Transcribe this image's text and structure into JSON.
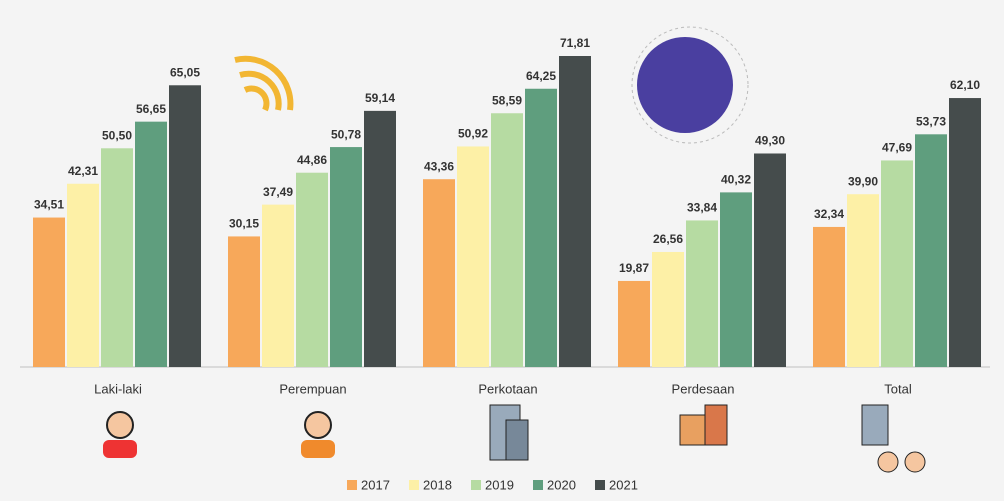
{
  "chart_data": {
    "type": "bar",
    "categories": [
      "Laki-laki",
      "Perempuan",
      "Perkotaan",
      "Perdesaan",
      "Total"
    ],
    "series": [
      {
        "name": "2017",
        "color": "#f7a85a",
        "values": [
          34.51,
          30.15,
          43.36,
          19.87,
          32.34
        ],
        "value_labels": [
          "34,51",
          "30,15",
          "43,36",
          "19,87",
          "32,34"
        ]
      },
      {
        "name": "2018",
        "color": "#fdf0a6",
        "values": [
          42.31,
          37.49,
          50.92,
          26.56,
          39.9
        ],
        "value_labels": [
          "42,31",
          "37,49",
          "50,92",
          "26,56",
          "39,90"
        ]
      },
      {
        "name": "2019",
        "color": "#b6dba2",
        "values": [
          50.5,
          44.86,
          58.59,
          33.84,
          47.69
        ],
        "value_labels": [
          "50,50",
          "44,86",
          "58,59",
          "33,84",
          "47,69"
        ]
      },
      {
        "name": "2020",
        "color": "#5f9e7e",
        "values": [
          56.65,
          50.78,
          64.25,
          40.32,
          53.73
        ],
        "value_labels": [
          "56,65",
          "50,78",
          "64,25",
          "40,32",
          "53,73"
        ]
      },
      {
        "name": "2021",
        "color": "#454c4c",
        "values": [
          65.05,
          59.14,
          71.81,
          49.3,
          62.1
        ],
        "value_labels": [
          "65,05",
          "59,14",
          "71,81",
          "49,30",
          "62,10"
        ]
      }
    ]
  }
}
